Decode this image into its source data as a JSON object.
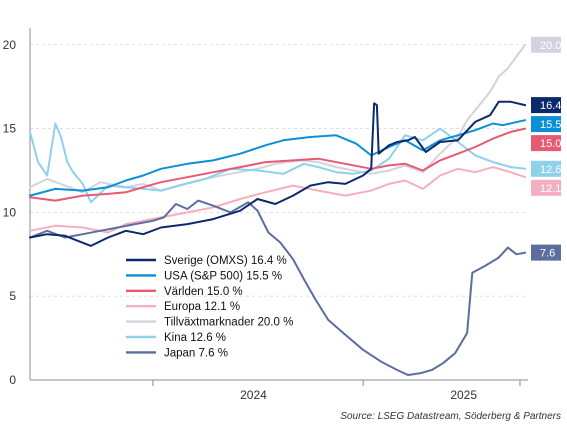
{
  "chart_data": {
    "type": "line",
    "ylim": [
      0,
      21
    ],
    "yticks": [
      0,
      5,
      10,
      15,
      20
    ],
    "xlim": [
      "2023-06-01",
      "2025-10-15"
    ],
    "xtick_labels": [
      {
        "label": "2024",
        "date": "2024-01-01"
      },
      {
        "label": "2025",
        "date": "2025-01-01"
      }
    ],
    "grid": true,
    "legend_position": "bottom-center",
    "source": "Source: LSEG Datastream, Söderberg & Partners",
    "series": [
      {
        "name": "Sverige (OMXS) 16.4 %",
        "end_label": "16.4",
        "color": "#0b2a6e",
        "points": [
          [
            "2023-06-01",
            8.5
          ],
          [
            "2023-07-01",
            8.7
          ],
          [
            "2023-08-01",
            8.6
          ],
          [
            "2023-09-15",
            8.0
          ],
          [
            "2023-10-15",
            8.5
          ],
          [
            "2023-11-15",
            8.9
          ],
          [
            "2023-12-15",
            8.7
          ],
          [
            "2024-01-15",
            9.1
          ],
          [
            "2024-03-01",
            9.3
          ],
          [
            "2024-04-15",
            9.6
          ],
          [
            "2024-06-01",
            10.1
          ],
          [
            "2024-07-01",
            10.8
          ],
          [
            "2024-08-01",
            10.5
          ],
          [
            "2024-09-01",
            11.0
          ],
          [
            "2024-10-01",
            11.6
          ],
          [
            "2024-11-01",
            11.8
          ],
          [
            "2024-12-01",
            11.7
          ],
          [
            "2025-01-01",
            12.2
          ],
          [
            "2025-01-15",
            12.6
          ],
          [
            "2025-01-20",
            16.5
          ],
          [
            "2025-01-25",
            16.4
          ],
          [
            "2025-01-28",
            13.5
          ],
          [
            "2025-02-15",
            14.0
          ],
          [
            "2025-03-01",
            14.2
          ],
          [
            "2025-03-20",
            14.3
          ],
          [
            "2025-04-01",
            14.5
          ],
          [
            "2025-04-20",
            13.6
          ],
          [
            "2025-05-15",
            14.2
          ],
          [
            "2025-06-15",
            14.3
          ],
          [
            "2025-07-15",
            15.4
          ],
          [
            "2025-08-10",
            15.8
          ],
          [
            "2025-08-25",
            16.6
          ],
          [
            "2025-09-15",
            16.6
          ],
          [
            "2025-10-10",
            16.4
          ]
        ]
      },
      {
        "name": "USA (S&P 500) 15.5 %",
        "end_label": "15.5",
        "color": "#0b8fd6",
        "points": [
          [
            "2023-06-01",
            11.0
          ],
          [
            "2023-07-15",
            11.4
          ],
          [
            "2023-09-01",
            11.3
          ],
          [
            "2023-10-15",
            11.5
          ],
          [
            "2023-11-15",
            11.9
          ],
          [
            "2023-12-15",
            12.2
          ],
          [
            "2024-01-15",
            12.6
          ],
          [
            "2024-03-01",
            12.9
          ],
          [
            "2024-04-15",
            13.1
          ],
          [
            "2024-06-01",
            13.5
          ],
          [
            "2024-07-15",
            14.0
          ],
          [
            "2024-08-15",
            14.3
          ],
          [
            "2024-10-01",
            14.5
          ],
          [
            "2024-11-15",
            14.6
          ],
          [
            "2024-12-20",
            14.1
          ],
          [
            "2025-01-15",
            13.4
          ],
          [
            "2025-02-15",
            13.9
          ],
          [
            "2025-03-15",
            14.3
          ],
          [
            "2025-04-15",
            13.7
          ],
          [
            "2025-05-15",
            14.3
          ],
          [
            "2025-06-15",
            14.6
          ],
          [
            "2025-07-15",
            14.9
          ],
          [
            "2025-08-15",
            15.3
          ],
          [
            "2025-09-01",
            15.2
          ],
          [
            "2025-10-10",
            15.5
          ]
        ]
      },
      {
        "name": "Världen 15.0 %",
        "end_label": "15.0",
        "color": "#e85a72",
        "points": [
          [
            "2023-06-01",
            10.9
          ],
          [
            "2023-07-15",
            10.7
          ],
          [
            "2023-09-01",
            11.0
          ],
          [
            "2023-10-15",
            11.1
          ],
          [
            "2023-11-15",
            11.2
          ],
          [
            "2023-12-15",
            11.5
          ],
          [
            "2024-01-15",
            11.8
          ],
          [
            "2024-03-01",
            12.1
          ],
          [
            "2024-04-15",
            12.4
          ],
          [
            "2024-06-01",
            12.7
          ],
          [
            "2024-07-15",
            13.0
          ],
          [
            "2024-09-01",
            13.1
          ],
          [
            "2024-10-15",
            13.2
          ],
          [
            "2024-12-01",
            12.9
          ],
          [
            "2025-01-15",
            12.6
          ],
          [
            "2025-02-15",
            12.8
          ],
          [
            "2025-03-15",
            12.9
          ],
          [
            "2025-04-15",
            12.5
          ],
          [
            "2025-05-15",
            13.1
          ],
          [
            "2025-06-15",
            13.5
          ],
          [
            "2025-07-15",
            13.9
          ],
          [
            "2025-08-15",
            14.4
          ],
          [
            "2025-09-15",
            14.8
          ],
          [
            "2025-10-10",
            15.0
          ]
        ]
      },
      {
        "name": "Europa 12.1 %",
        "end_label": "12.1",
        "color": "#f4afc0",
        "points": [
          [
            "2023-06-01",
            8.9
          ],
          [
            "2023-07-15",
            9.2
          ],
          [
            "2023-09-01",
            9.1
          ],
          [
            "2023-10-15",
            8.8
          ],
          [
            "2023-11-15",
            9.3
          ],
          [
            "2023-12-15",
            9.5
          ],
          [
            "2024-01-15",
            9.7
          ],
          [
            "2024-03-01",
            10.0
          ],
          [
            "2024-04-15",
            10.3
          ],
          [
            "2024-06-01",
            10.8
          ],
          [
            "2024-07-15",
            11.2
          ],
          [
            "2024-09-01",
            11.6
          ],
          [
            "2024-10-15",
            11.3
          ],
          [
            "2024-12-01",
            11.0
          ],
          [
            "2025-01-15",
            11.3
          ],
          [
            "2025-02-15",
            11.7
          ],
          [
            "2025-03-15",
            11.9
          ],
          [
            "2025-04-15",
            11.4
          ],
          [
            "2025-05-15",
            12.2
          ],
          [
            "2025-06-15",
            12.6
          ],
          [
            "2025-07-15",
            12.4
          ],
          [
            "2025-08-15",
            12.7
          ],
          [
            "2025-09-15",
            12.4
          ],
          [
            "2025-10-10",
            12.1
          ]
        ]
      },
      {
        "name": "Tillväxtmarknader 20.0 %",
        "end_label": "20.0",
        "color": "#d2d3de",
        "points": [
          [
            "2023-06-01",
            11.5
          ],
          [
            "2023-07-01",
            12.0
          ],
          [
            "2023-08-01",
            11.6
          ],
          [
            "2023-09-01",
            11.2
          ],
          [
            "2023-10-01",
            11.8
          ],
          [
            "2023-11-15",
            11.5
          ],
          [
            "2023-12-15",
            11.7
          ],
          [
            "2024-01-15",
            11.3
          ],
          [
            "2024-02-15",
            11.6
          ],
          [
            "2024-04-01",
            12.0
          ],
          [
            "2024-05-15",
            12.3
          ],
          [
            "2024-07-01",
            12.6
          ],
          [
            "2024-08-01",
            12.9
          ],
          [
            "2024-09-15",
            13.1
          ],
          [
            "2024-10-15",
            13.0
          ],
          [
            "2024-11-15",
            12.7
          ],
          [
            "2024-12-15",
            12.5
          ],
          [
            "2025-01-15",
            12.3
          ],
          [
            "2025-02-15",
            12.5
          ],
          [
            "2025-03-15",
            12.8
          ],
          [
            "2025-04-15",
            12.4
          ],
          [
            "2025-05-15",
            13.5
          ],
          [
            "2025-06-15",
            14.5
          ],
          [
            "2025-07-01",
            15.5
          ],
          [
            "2025-07-20",
            16.3
          ],
          [
            "2025-08-10",
            17.2
          ],
          [
            "2025-08-25",
            18.1
          ],
          [
            "2025-09-10",
            18.6
          ],
          [
            "2025-09-25",
            19.3
          ],
          [
            "2025-10-10",
            20.0
          ]
        ]
      },
      {
        "name": "Kina 12.6 %",
        "end_label": "12.6",
        "color": "#8fd1ea",
        "points": [
          [
            "2023-06-01",
            14.8
          ],
          [
            "2023-06-15",
            13.0
          ],
          [
            "2023-07-01",
            12.2
          ],
          [
            "2023-07-15",
            15.3
          ],
          [
            "2023-07-25",
            14.5
          ],
          [
            "2023-08-05",
            13.0
          ],
          [
            "2023-08-15",
            12.4
          ],
          [
            "2023-09-01",
            11.7
          ],
          [
            "2023-09-15",
            10.6
          ],
          [
            "2023-10-15",
            11.6
          ],
          [
            "2023-11-15",
            11.5
          ],
          [
            "2023-12-15",
            11.4
          ],
          [
            "2024-01-15",
            11.3
          ],
          [
            "2024-02-15",
            11.6
          ],
          [
            "2024-04-01",
            12.0
          ],
          [
            "2024-05-15",
            12.6
          ],
          [
            "2024-07-01",
            12.5
          ],
          [
            "2024-08-15",
            12.3
          ],
          [
            "2024-09-20",
            12.9
          ],
          [
            "2024-10-15",
            12.7
          ],
          [
            "2024-11-15",
            12.4
          ],
          [
            "2024-12-15",
            12.3
          ],
          [
            "2025-01-15",
            12.5
          ],
          [
            "2025-02-15",
            13.2
          ],
          [
            "2025-03-15",
            14.6
          ],
          [
            "2025-04-15",
            14.3
          ],
          [
            "2025-05-15",
            15.0
          ],
          [
            "2025-06-15",
            14.2
          ],
          [
            "2025-07-15",
            13.4
          ],
          [
            "2025-08-15",
            13.0
          ],
          [
            "2025-09-15",
            12.7
          ],
          [
            "2025-10-10",
            12.6
          ]
        ]
      },
      {
        "name": "Japan 7.6 %",
        "end_label": "7.6",
        "color": "#5b6e9e",
        "points": [
          [
            "2023-06-01",
            8.5
          ],
          [
            "2023-07-01",
            8.9
          ],
          [
            "2023-08-01",
            8.5
          ],
          [
            "2023-09-01",
            8.7
          ],
          [
            "2023-10-01",
            8.9
          ],
          [
            "2023-11-01",
            9.1
          ],
          [
            "2023-12-01",
            9.3
          ],
          [
            "2024-01-01",
            9.5
          ],
          [
            "2024-01-20",
            9.7
          ],
          [
            "2024-02-10",
            10.5
          ],
          [
            "2024-03-01",
            10.2
          ],
          [
            "2024-03-20",
            10.7
          ],
          [
            "2024-04-15",
            10.4
          ],
          [
            "2024-05-15",
            10.0
          ],
          [
            "2024-06-15",
            10.6
          ],
          [
            "2024-07-01",
            10.1
          ],
          [
            "2024-07-20",
            8.8
          ],
          [
            "2024-08-10",
            8.2
          ],
          [
            "2024-09-01",
            7.2
          ],
          [
            "2024-09-20",
            6.0
          ],
          [
            "2024-10-10",
            4.8
          ],
          [
            "2024-11-01",
            3.6
          ],
          [
            "2024-12-01",
            2.7
          ],
          [
            "2025-01-01",
            1.8
          ],
          [
            "2025-02-01",
            1.1
          ],
          [
            "2025-03-01",
            0.6
          ],
          [
            "2025-03-20",
            0.3
          ],
          [
            "2025-04-10",
            0.4
          ],
          [
            "2025-05-01",
            0.6
          ],
          [
            "2025-05-20",
            1.0
          ],
          [
            "2025-06-10",
            1.6
          ],
          [
            "2025-07-01",
            2.8
          ],
          [
            "2025-07-10",
            6.4
          ],
          [
            "2025-08-01",
            6.8
          ],
          [
            "2025-08-25",
            7.3
          ],
          [
            "2025-09-10",
            7.9
          ],
          [
            "2025-09-25",
            7.5
          ],
          [
            "2025-10-10",
            7.6
          ]
        ]
      }
    ]
  }
}
